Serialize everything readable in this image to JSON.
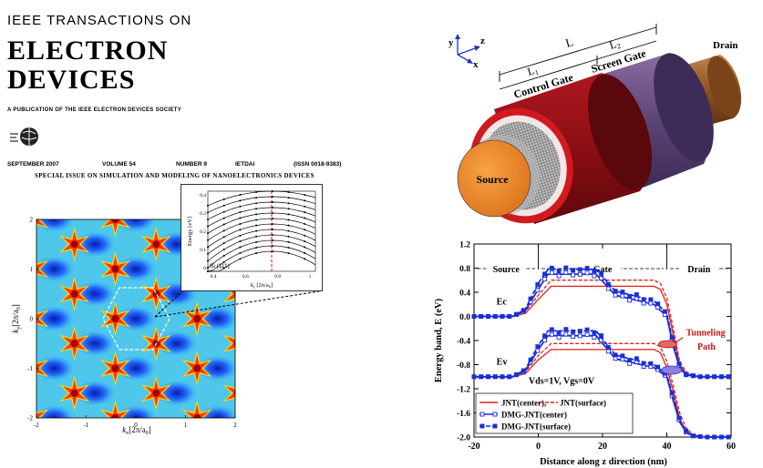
{
  "cover": {
    "journal_line1": "IEEE TRANSACTIONS ON",
    "journal_title_1": "ELECTRON",
    "journal_title_2": "DEVICES",
    "publication": "A PUBLICATION OF THE IEEE ELECTRON DEVICES SOCIETY",
    "date": "SEPTEMBER 2007",
    "volume": "VOLUME 54",
    "number": "NUMBER 9",
    "code": "IETDAI",
    "issn": "(ISSN 0018-9383)",
    "special_issue": "SPECIAL ISSUE ON SIMULATION AND MODELING OF NANOELECTRONICS DEVICES"
  },
  "contour_plot": {
    "xlabel": "k",
    "xlabel_sub": "x",
    "xlabel_units": "[2π/a",
    "xlabel_units_sub": "0",
    "xlabel_close": "]",
    "ylabel": "k",
    "ylabel_sub": "y",
    "ylabel_units": "[2π/a",
    "ylabel_units_sub": "0",
    "ylabel_close": "]",
    "xticks": [
      "-2",
      "-1",
      "0",
      "1",
      "2"
    ],
    "yticks": [
      "2",
      "1",
      "0",
      "-1",
      "-2"
    ]
  },
  "inset_plot": {
    "ylabel": "Energy [eV]",
    "xlabel": "k",
    "xlabel_sub": "z",
    "xlabel_units": " [2π/a",
    "xlabel_units_sub": "0",
    "xlabel_close": "]",
    "annotation": "Si (111)",
    "yticks": [
      "0.4",
      "0.3",
      "0.2",
      "0.1",
      "0"
    ],
    "xticks": [
      "0.4",
      "0.6",
      "0.8",
      "1"
    ]
  },
  "device": {
    "axis_y": "y",
    "axis_z": "z",
    "axis_x": "x",
    "label_L": "L",
    "label_L1": "L",
    "label_L1_sub": "1",
    "label_L2": "L",
    "label_L2_sub": "2",
    "control_gate": "Control Gate",
    "screen_gate": "Screen Gate",
    "drain": "Drain",
    "source": "Source"
  },
  "chart_data": {
    "type": "line",
    "xlabel": "Distance along z direction (nm)",
    "ylabel": "Energy band, E (eV)",
    "xlim": [
      -20,
      60
    ],
    "ylim": [
      -2.0,
      1.2
    ],
    "xticks": [
      "-20",
      "0",
      "20",
      "40",
      "60"
    ],
    "yticks": [
      "1.2",
      "0.8",
      "0.4",
      "0.0",
      "-0.4",
      "-0.8",
      "-1.2",
      "-1.6",
      "-2.0"
    ],
    "region_labels": [
      "Source",
      "Gate",
      "Drain"
    ],
    "band_labels": [
      "Ec",
      "Ev"
    ],
    "annotation_tunneling": "Tunneling",
    "annotation_path": "Path",
    "bias_text": "Vds=1V, Vgs=0V",
    "legend": [
      "JNT(center),",
      "JNT(surface)",
      "DMG-JNT(center)",
      "DMG-JNT(surface)"
    ],
    "series": [
      {
        "name": "JNT(center)",
        "band": "Ec",
        "x": [
          -20,
          -8,
          -4,
          0,
          4,
          36,
          38,
          40,
          42,
          44,
          46,
          50,
          54,
          60
        ],
        "y": [
          0.0,
          0.0,
          0.05,
          0.28,
          0.5,
          0.5,
          0.45,
          0.2,
          -0.3,
          -0.8,
          -0.95,
          -1.0,
          -1.0,
          -1.0
        ]
      },
      {
        "name": "JNT(surface)",
        "band": "Ec",
        "x": [
          -20,
          -8,
          -4,
          0,
          4,
          36,
          38,
          40,
          42,
          44,
          46,
          50,
          54,
          60
        ],
        "y": [
          0.0,
          0.0,
          0.08,
          0.35,
          0.6,
          0.6,
          0.55,
          0.3,
          -0.2,
          -0.75,
          -0.92,
          -1.0,
          -1.0,
          -1.0
        ]
      },
      {
        "name": "DMG-JNT(center)",
        "band": "Ec",
        "x": [
          -20,
          -8,
          -4,
          0,
          3,
          18,
          24,
          36,
          40,
          42,
          44,
          46,
          50,
          54,
          60
        ],
        "y": [
          0.0,
          0.0,
          0.1,
          0.45,
          0.7,
          0.7,
          0.35,
          0.2,
          0.0,
          -0.5,
          -0.85,
          -0.97,
          -1.0,
          -1.0,
          -1.0
        ]
      },
      {
        "name": "DMG-JNT(surface)",
        "band": "Ec",
        "x": [
          -20,
          -8,
          -4,
          0,
          3,
          18,
          24,
          36,
          40,
          42,
          44,
          46,
          50,
          54,
          60
        ],
        "y": [
          0.0,
          0.0,
          0.12,
          0.55,
          0.78,
          0.78,
          0.42,
          0.26,
          0.05,
          -0.45,
          -0.82,
          -0.96,
          -1.0,
          -1.0,
          -1.0
        ]
      },
      {
        "name": "JNT(center)",
        "band": "Ev",
        "x": [
          -20,
          -8,
          -4,
          0,
          4,
          36,
          38,
          40,
          42,
          44,
          46,
          48,
          52,
          56,
          60
        ],
        "y": [
          -1.0,
          -1.0,
          -0.95,
          -0.72,
          -0.55,
          -0.55,
          -0.6,
          -0.85,
          -1.25,
          -1.7,
          -1.9,
          -1.97,
          -2.0,
          -2.0,
          -2.0
        ]
      },
      {
        "name": "JNT(surface)",
        "band": "Ev",
        "x": [
          -20,
          -8,
          -4,
          0,
          4,
          36,
          38,
          40,
          42,
          44,
          46,
          48,
          52,
          56,
          60
        ],
        "y": [
          -1.0,
          -1.0,
          -0.92,
          -0.65,
          -0.45,
          -0.45,
          -0.5,
          -0.75,
          -1.15,
          -1.6,
          -1.85,
          -1.95,
          -2.0,
          -2.0,
          -2.0
        ]
      },
      {
        "name": "DMG-JNT(center)",
        "band": "Ev",
        "x": [
          -20,
          -8,
          -4,
          0,
          3,
          18,
          24,
          36,
          40,
          42,
          44,
          46,
          48,
          52,
          56,
          60
        ],
        "y": [
          -1.0,
          -1.0,
          -0.9,
          -0.55,
          -0.32,
          -0.32,
          -0.7,
          -0.85,
          -1.0,
          -1.4,
          -1.75,
          -1.92,
          -1.98,
          -2.0,
          -2.0,
          -2.0
        ]
      },
      {
        "name": "DMG-JNT(surface)",
        "band": "Ev",
        "x": [
          -20,
          -8,
          -4,
          0,
          3,
          18,
          24,
          36,
          40,
          42,
          44,
          46,
          48,
          52,
          56,
          60
        ],
        "y": [
          -1.0,
          -1.0,
          -0.88,
          -0.48,
          -0.24,
          -0.24,
          -0.64,
          -0.8,
          -0.97,
          -1.35,
          -1.72,
          -1.9,
          -1.98,
          -2.0,
          -2.0,
          -2.0
        ]
      }
    ],
    "colors": {
      "jnt": "#e0201b",
      "dmg": "#1a2fd8"
    }
  }
}
